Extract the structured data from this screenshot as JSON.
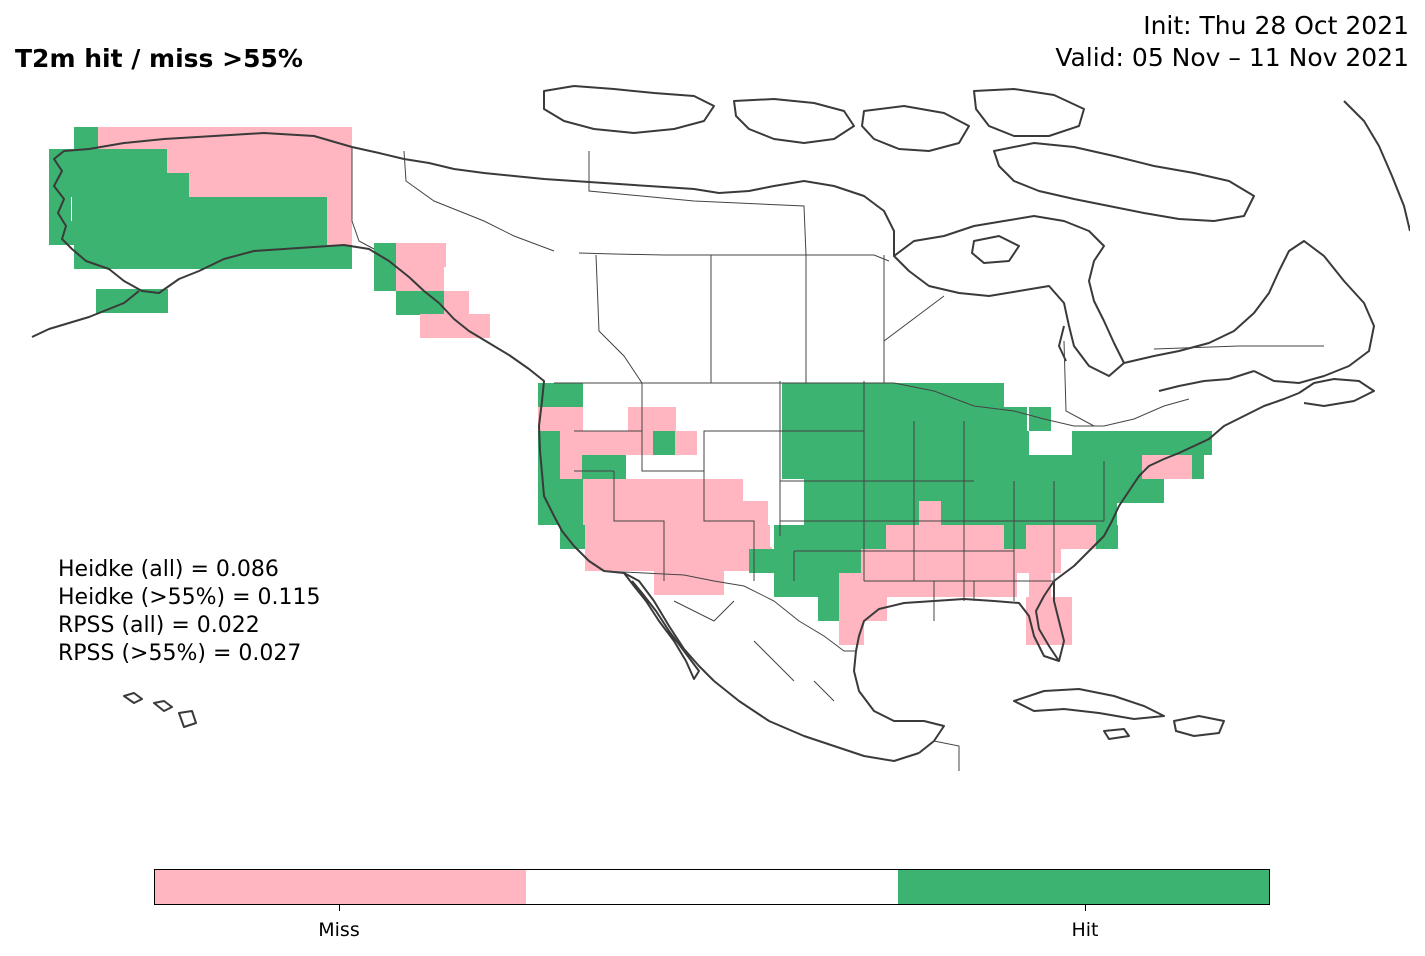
{
  "header": {
    "title": "T2m hit / miss  >55%",
    "init": "Init: Thu 28 Oct 2021",
    "valid": "Valid: 05 Nov – 11 Nov 2021"
  },
  "stats": [
    "Heidke (all) = 0.086",
    "Heidke (>55%) = 0.115",
    "RPSS (all) = 0.022",
    "RPSS (>55%) = 0.027"
  ],
  "colorbar": {
    "categories": [
      "Miss",
      "",
      "Hit"
    ],
    "colors": [
      "#ffb6c1",
      "#ffffff",
      "#3cb371"
    ],
    "tick_labels": [
      "Miss",
      "Hit"
    ]
  },
  "map": {
    "region": "North America",
    "colors": {
      "hit": "#3cb371",
      "miss": "#ffb6c1",
      "coast": "#3a3a3a",
      "border": "#444444"
    }
  }
}
